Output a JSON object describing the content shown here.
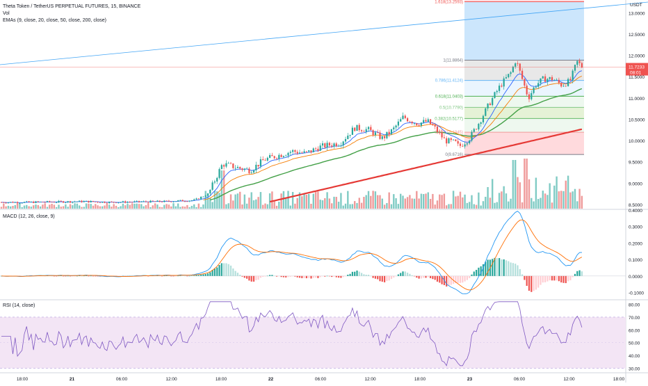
{
  "header": {
    "symbol_line": "Theta Token / TetherUS PERPETUAL FUTURES, 15, BINANCE",
    "vol_label": "Vol",
    "ema_label": "EMAs (9, close, 20, close, 50, close, 200, close)",
    "macd_label": "MACD (12, 26, close, 9)",
    "rsi_label": "RSI (14, close)"
  },
  "colors": {
    "up": "#26a69a",
    "down": "#ef5350",
    "ema9": "#2962ff",
    "ema20": "#f57c00",
    "ema50": "#43a047",
    "ema200": "#e53935",
    "macd_line": "#2196f3",
    "signal_line": "#ff6d00",
    "rsi_line": "#7e57c2",
    "rsi_band": "#f3e5f5",
    "trendline": "#42a5f5",
    "fib_top_band": "#bbdefb",
    "fib_red_band": "#ffcdd2"
  },
  "chart_data": [
    {
      "type": "candlestick",
      "title": "",
      "price_axis": {
        "unit_label": "USDT",
        "ylim": [
          8.4,
          13.3
        ],
        "ticks": [
          "13.0000",
          "12.5000",
          "12.0000",
          "11.5000",
          "11.0000",
          "10.5000",
          "10.0000",
          "9.5000",
          "9.0000",
          "8.5000"
        ],
        "last_price": "11.7233",
        "countdown": "08:01"
      },
      "time_axis": {
        "ticks": [
          "18:00",
          "21",
          "06:00",
          "12:00",
          "18:00",
          "22",
          "06:00",
          "12:00",
          "18:00",
          "23",
          "06:00",
          "12:00",
          "18:00"
        ]
      },
      "price_path_approx": [
        [
          0,
          8.55
        ],
        [
          40,
          8.55
        ],
        [
          80,
          8.56
        ],
        [
          120,
          8.57
        ],
        [
          160,
          8.55
        ],
        [
          200,
          8.56
        ],
        [
          240,
          8.57
        ],
        [
          280,
          8.6
        ],
        [
          300,
          8.75
        ],
        [
          320,
          9.45
        ],
        [
          345,
          9.35
        ],
        [
          360,
          9.3
        ],
        [
          380,
          9.55
        ],
        [
          400,
          9.65
        ],
        [
          420,
          9.75
        ],
        [
          440,
          9.7
        ],
        [
          460,
          9.85
        ],
        [
          490,
          9.95
        ],
        [
          510,
          10.3
        ],
        [
          530,
          10.25
        ],
        [
          550,
          10.05
        ],
        [
          565,
          10.25
        ],
        [
          580,
          10.55
        ],
        [
          600,
          10.4
        ],
        [
          615,
          10.45
        ],
        [
          625,
          10.3
        ],
        [
          640,
          10.0
        ],
        [
          655,
          9.95
        ],
        [
          660,
          9.85
        ],
        [
          675,
          10.05
        ],
        [
          690,
          10.45
        ],
        [
          705,
          10.9
        ],
        [
          720,
          11.3
        ],
        [
          735,
          11.6
        ],
        [
          742,
          11.9
        ],
        [
          752,
          11.4
        ],
        [
          760,
          11.0
        ],
        [
          770,
          11.3
        ],
        [
          782,
          11.45
        ],
        [
          795,
          11.45
        ],
        [
          808,
          11.3
        ],
        [
          820,
          11.4
        ],
        [
          830,
          11.85
        ],
        [
          838,
          11.72
        ]
      ],
      "ema_legend": [
        "9",
        "20",
        "50",
        "200"
      ],
      "fibonacci": [
        {
          "label": "1.618(13.2593)",
          "ratio": "1.618",
          "price": 13.2593
        },
        {
          "label": "1(11.8864)",
          "ratio": "1",
          "price": 11.8864
        },
        {
          "label": "0.786(11.4124)",
          "ratio": "0.786",
          "price": 11.4124
        },
        {
          "label": "0.618(11.0403)",
          "ratio": "0.618",
          "price": 11.0403
        },
        {
          "label": "0.5(10.7790)",
          "ratio": "0.5",
          "price": 10.779
        },
        {
          "label": "0.382(10.5177)",
          "ratio": "0.382",
          "price": 10.5177
        },
        {
          "label": "0.236(10.1945)",
          "ratio": "0.236",
          "price": 10.1945
        },
        {
          "label": "0(9.6716)",
          "ratio": "0",
          "price": 9.6716
        }
      ],
      "volume_note": "histogram bars colored by candle direction"
    },
    {
      "type": "line",
      "title": "MACD (12, 26, close, 9)",
      "ylim": [
        -0.14,
        0.4
      ],
      "ticks": [
        "0.4000",
        "0.3000",
        "0.2000",
        "0.1000",
        "0.0000",
        "-0.1000"
      ],
      "series": [
        {
          "name": "MACD"
        },
        {
          "name": "Signal"
        },
        {
          "name": "Histogram"
        }
      ]
    },
    {
      "type": "line",
      "title": "RSI (14, close)",
      "ylim": [
        27,
        83
      ],
      "ticks": [
        "80.00",
        "70.00",
        "60.00",
        "50.00",
        "40.00",
        "30.00"
      ],
      "bands": {
        "upper": 70,
        "lower": 30
      }
    }
  ]
}
